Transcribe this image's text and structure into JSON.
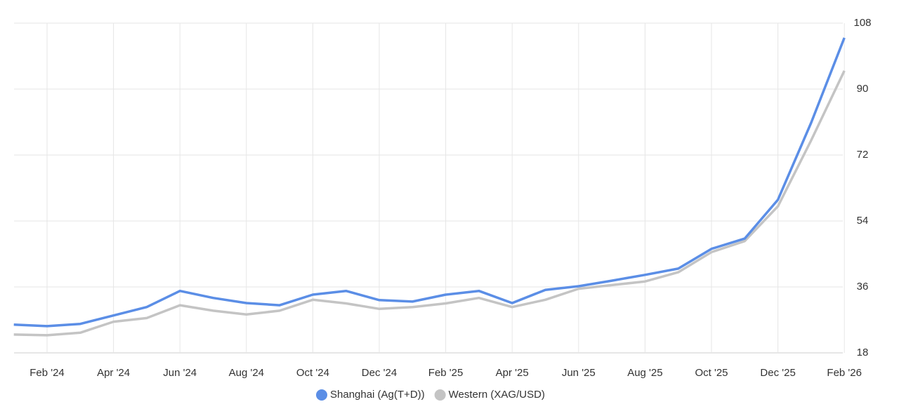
{
  "chart_data": {
    "type": "line",
    "categories": [
      null,
      "Feb '24",
      null,
      "Apr '24",
      null,
      "Jun '24",
      null,
      "Aug '24",
      null,
      "Oct '24",
      null,
      "Dec '24",
      null,
      "Feb '25",
      null,
      "Apr '25",
      null,
      "Jun '25",
      null,
      "Aug '25",
      null,
      "Oct '25",
      null,
      "Dec '25",
      null,
      "Feb '26"
    ],
    "series": [
      {
        "name": "Shanghai (Ag(T+D))",
        "color": "#5b8ee6",
        "values": [
          25.7,
          25.3,
          25.9,
          28.2,
          30.5,
          34.9,
          33,
          31.6,
          31,
          33.9,
          34.9,
          32.4,
          32,
          33.9,
          34.9,
          31.6,
          35.2,
          36.2,
          37.7,
          39.3,
          41,
          46.4,
          49.2,
          59.8,
          80.8,
          104
        ]
      },
      {
        "name": "Western (XAG/USD)",
        "color": "#c4c4c4",
        "values": [
          23,
          22.8,
          23.5,
          26.5,
          27.5,
          31,
          29.5,
          28.5,
          29.5,
          32.5,
          31.5,
          30,
          30.5,
          31.5,
          33,
          30.5,
          32.5,
          35.5,
          36.5,
          37.5,
          40,
          45.5,
          48.5,
          58,
          76,
          95
        ]
      }
    ],
    "ylim": [
      18,
      108
    ],
    "yticks": [
      18,
      36,
      54,
      72,
      90,
      108
    ],
    "grid": true,
    "legend": "bottom"
  }
}
